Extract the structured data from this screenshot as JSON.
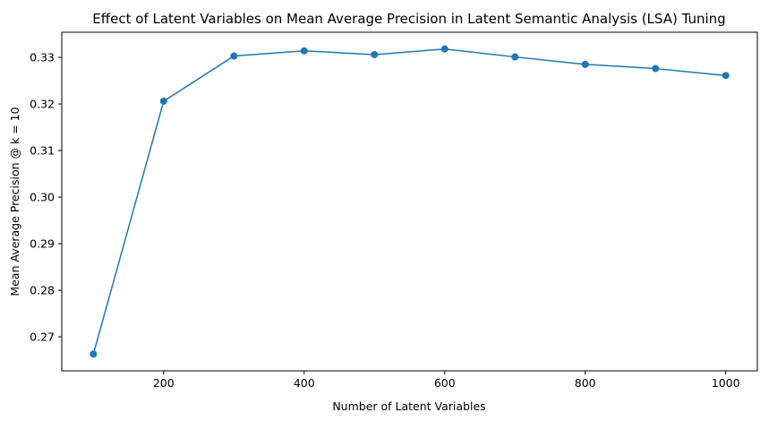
{
  "chart_data": {
    "type": "line",
    "title": "Effect of Latent Variables on Mean Average Precision in Latent Semantic Analysis (LSA) Tuning",
    "xlabel": "Number of Latent Variables",
    "ylabel": "Mean Average Precision @ k = 10",
    "x": [
      100,
      200,
      300,
      400,
      500,
      600,
      700,
      800,
      900,
      1000
    ],
    "series": [
      {
        "values": [
          0.2663,
          0.3206,
          0.3303,
          0.3314,
          0.3306,
          0.3318,
          0.3301,
          0.3285,
          0.3276,
          0.3261
        ],
        "color": "#1f77b4",
        "marker": "circle"
      }
    ],
    "xlim": [
      55,
      1045
    ],
    "ylim": [
      0.2627,
      0.3354
    ],
    "xticks": [
      200,
      400,
      600,
      800,
      1000
    ],
    "xtick_labels": [
      "200",
      "400",
      "600",
      "800",
      "1000"
    ],
    "yticks": [
      0.27,
      0.28,
      0.29,
      0.3,
      0.31,
      0.32,
      0.33
    ],
    "ytick_labels": [
      "0.27",
      "0.28",
      "0.29",
      "0.30",
      "0.31",
      "0.32",
      "0.33"
    ],
    "grid": false,
    "legend": false
  }
}
